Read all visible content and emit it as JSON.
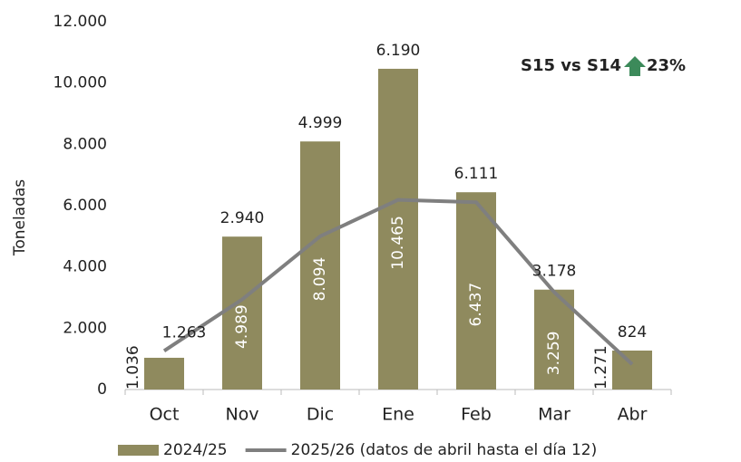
{
  "chart_data": {
    "type": "bar",
    "y_label": "Toneladas",
    "annotation": {
      "text": "S15 vs S14",
      "change": "23%"
    },
    "categories": [
      "Oct",
      "Nov",
      "Dic",
      "Ene",
      "Feb",
      "Mar",
      "Abr"
    ],
    "series": [
      {
        "name": "2024/25",
        "type": "bar",
        "color": "#8f8a5e",
        "values": [
          1036,
          4989,
          8094,
          10465,
          6437,
          3259,
          1271
        ],
        "value_labels": [
          "1.036",
          "4.989",
          "8.094",
          "10.465",
          "6.437",
          "3.259",
          "1.271"
        ]
      },
      {
        "name": "2025/26 (datos de abril hasta el día 12)",
        "type": "line",
        "color": "#7f7f7f",
        "values": [
          1263,
          2940,
          4999,
          6190,
          6111,
          3178,
          824
        ],
        "value_labels": [
          "1.263",
          "2.940",
          "4.999",
          "6.190",
          "6.111",
          "3.178",
          "824"
        ]
      }
    ],
    "ylim": [
      0,
      12000
    ],
    "yticks": [
      0,
      {
        "value": 2000,
        "label": "2.000"
      },
      {
        "value": 4000,
        "label": "4.000"
      },
      {
        "value": 6000,
        "label": "6.000"
      },
      {
        "value": 8000,
        "label": "8.000"
      },
      {
        "value": 10000,
        "label": "10.000"
      },
      {
        "value": 12000,
        "label": "12.000"
      }
    ],
    "grid": false,
    "legend": "bottom"
  }
}
